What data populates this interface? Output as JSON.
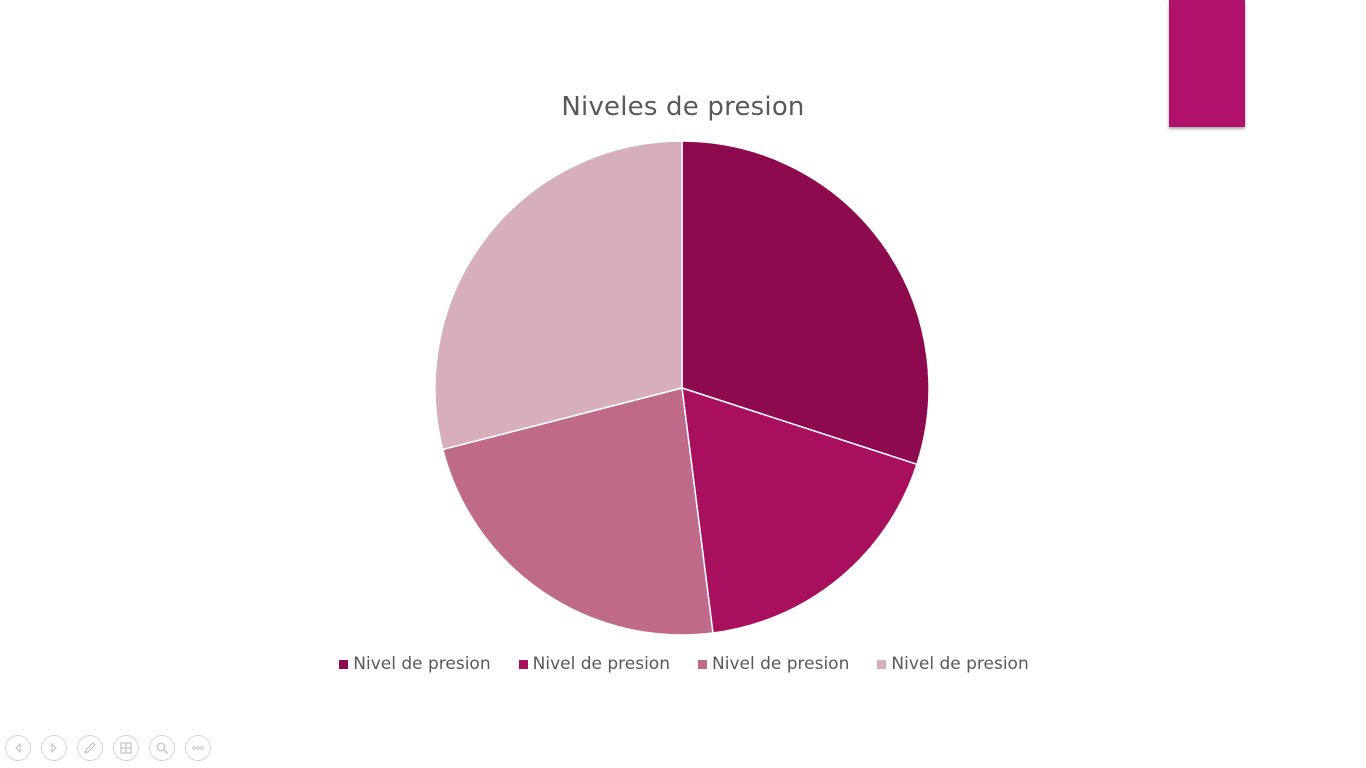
{
  "colors": {
    "accent_tab": "#B0116A"
  },
  "controls": [
    {
      "name": "previous-slide-button",
      "icon": "chevron-left-icon"
    },
    {
      "name": "next-slide-button",
      "icon": "chevron-right-icon"
    },
    {
      "name": "pen-tool-button",
      "icon": "pen-icon"
    },
    {
      "name": "see-all-slides-button",
      "icon": "grid-icon"
    },
    {
      "name": "zoom-button",
      "icon": "magnifier-icon"
    },
    {
      "name": "more-options-button",
      "icon": "ellipsis-icon"
    }
  ],
  "chart_data": {
    "type": "pie",
    "title": "Niveles de presion",
    "categories": [
      "Nivel de presion",
      "Nivel de presion",
      "Nivel de presion",
      "Nivel de presion"
    ],
    "values": [
      30,
      18,
      23,
      29
    ],
    "colors": [
      "#8C0A4D",
      "#A8105E",
      "#C06A8A",
      "#D7AEBC"
    ],
    "legend_position": "bottom",
    "start_angle_deg": 0,
    "direction": "clockwise"
  }
}
